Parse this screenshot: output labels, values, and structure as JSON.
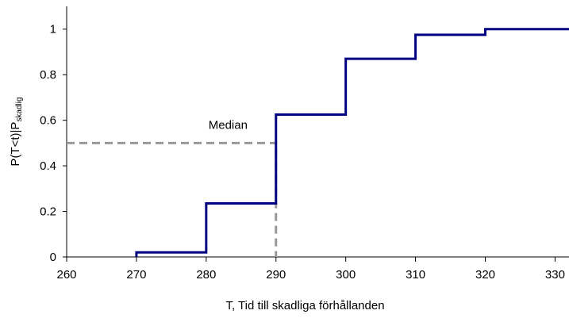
{
  "chart_data": {
    "type": "line",
    "title": "",
    "xlabel": "T, Tid till skadliga förhållanden",
    "ylabel_main": "P(T<t)|P",
    "ylabel_sub": "skadlig",
    "xlim": [
      260,
      332
    ],
    "ylim": [
      0,
      1.1
    ],
    "x_ticks": [
      260,
      270,
      280,
      290,
      300,
      310,
      320,
      330
    ],
    "y_ticks": [
      0,
      0.2,
      0.4,
      0.6,
      0.8,
      1
    ],
    "y_tick_labels": [
      "0",
      "0.2",
      "0.4",
      "0.6",
      "0.8",
      "1"
    ],
    "grid": false,
    "legend": "none",
    "series": [
      {
        "style": "step",
        "color": "#000080",
        "x": [
          270,
          270,
          280,
          280,
          290,
          290,
          300,
          300,
          310,
          310,
          320,
          320,
          332
        ],
        "y": [
          0,
          0.02,
          0.02,
          0.235,
          0.235,
          0.625,
          0.625,
          0.87,
          0.87,
          0.975,
          0.975,
          1.0,
          1.0
        ]
      }
    ],
    "median": {
      "label": "Median",
      "x": 290,
      "y": 0.5,
      "color": "#999999"
    }
  }
}
